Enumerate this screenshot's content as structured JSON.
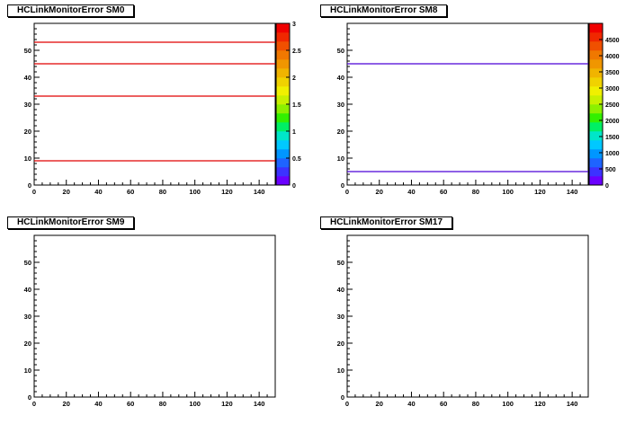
{
  "canvas": {
    "background": "#ffffff"
  },
  "axis_x": {
    "ticks": [
      0,
      20,
      40,
      60,
      80,
      100,
      120,
      140
    ],
    "tick_labels": [
      "0",
      "20",
      "40",
      "60",
      "80",
      "100",
      "120",
      "140"
    ],
    "range": [
      0,
      150
    ]
  },
  "axis_y": {
    "ticks": [
      0,
      10,
      20,
      30,
      40,
      50
    ],
    "tick_labels": [
      "0",
      "10",
      "20",
      "30",
      "40",
      "50"
    ],
    "range": [
      0,
      60
    ]
  },
  "palette": [
    "#6a00ff",
    "#3c32ff",
    "#1e64ff",
    "#0096ff",
    "#00c8ff",
    "#00e6c8",
    "#00f064",
    "#32f000",
    "#8cf000",
    "#c8f000",
    "#f0f000",
    "#f0d200",
    "#f0b400",
    "#f09600",
    "#f07800",
    "#f05000",
    "#f02800",
    "#f00000"
  ],
  "chart_data": [
    {
      "type": "heatmap",
      "title": "HCLinkMonitorError SM0",
      "xlim": [
        0,
        150
      ],
      "ylim": [
        0,
        60
      ],
      "grid": false,
      "lines": [
        {
          "y": 9,
          "x": [
            0,
            150
          ],
          "color": "#e00000"
        },
        {
          "y": 33,
          "x": [
            0,
            150
          ],
          "color": "#e00000"
        },
        {
          "y": 45,
          "x": [
            0,
            150
          ],
          "color": "#e00000"
        },
        {
          "y": 53,
          "x": [
            0,
            150
          ],
          "color": "#e00000"
        }
      ],
      "colorbar": {
        "min": 0,
        "max": 3,
        "tick_labels": [
          "0",
          "0.5",
          "1",
          "1.5",
          "2",
          "2.5",
          "3"
        ],
        "tick_values": [
          0,
          0.5,
          1,
          1.5,
          2,
          2.5,
          3
        ]
      }
    },
    {
      "type": "heatmap",
      "title": "HCLinkMonitorError SM8",
      "xlim": [
        0,
        150
      ],
      "ylim": [
        0,
        60
      ],
      "grid": false,
      "lines": [
        {
          "y": 5,
          "x": [
            0,
            150
          ],
          "color": "#4b00d8"
        },
        {
          "y": 45,
          "x": [
            0,
            150
          ],
          "color": "#4b00d8"
        }
      ],
      "colorbar": {
        "min": 0,
        "max": 5000,
        "tick_labels": [
          "0",
          "500",
          "1000",
          "1500",
          "2000",
          "2500",
          "3000",
          "3500",
          "4000",
          "4500"
        ],
        "tick_values": [
          0,
          500,
          1000,
          1500,
          2000,
          2500,
          3000,
          3500,
          4000,
          4500
        ]
      }
    },
    {
      "type": "heatmap",
      "title": "HCLinkMonitorError SM9",
      "xlim": [
        0,
        150
      ],
      "ylim": [
        0,
        60
      ],
      "grid": false,
      "lines": [],
      "colorbar": null
    },
    {
      "type": "heatmap",
      "title": "HCLinkMonitorError SM17",
      "xlim": [
        0,
        150
      ],
      "ylim": [
        0,
        60
      ],
      "grid": false,
      "lines": [],
      "colorbar": null
    }
  ]
}
